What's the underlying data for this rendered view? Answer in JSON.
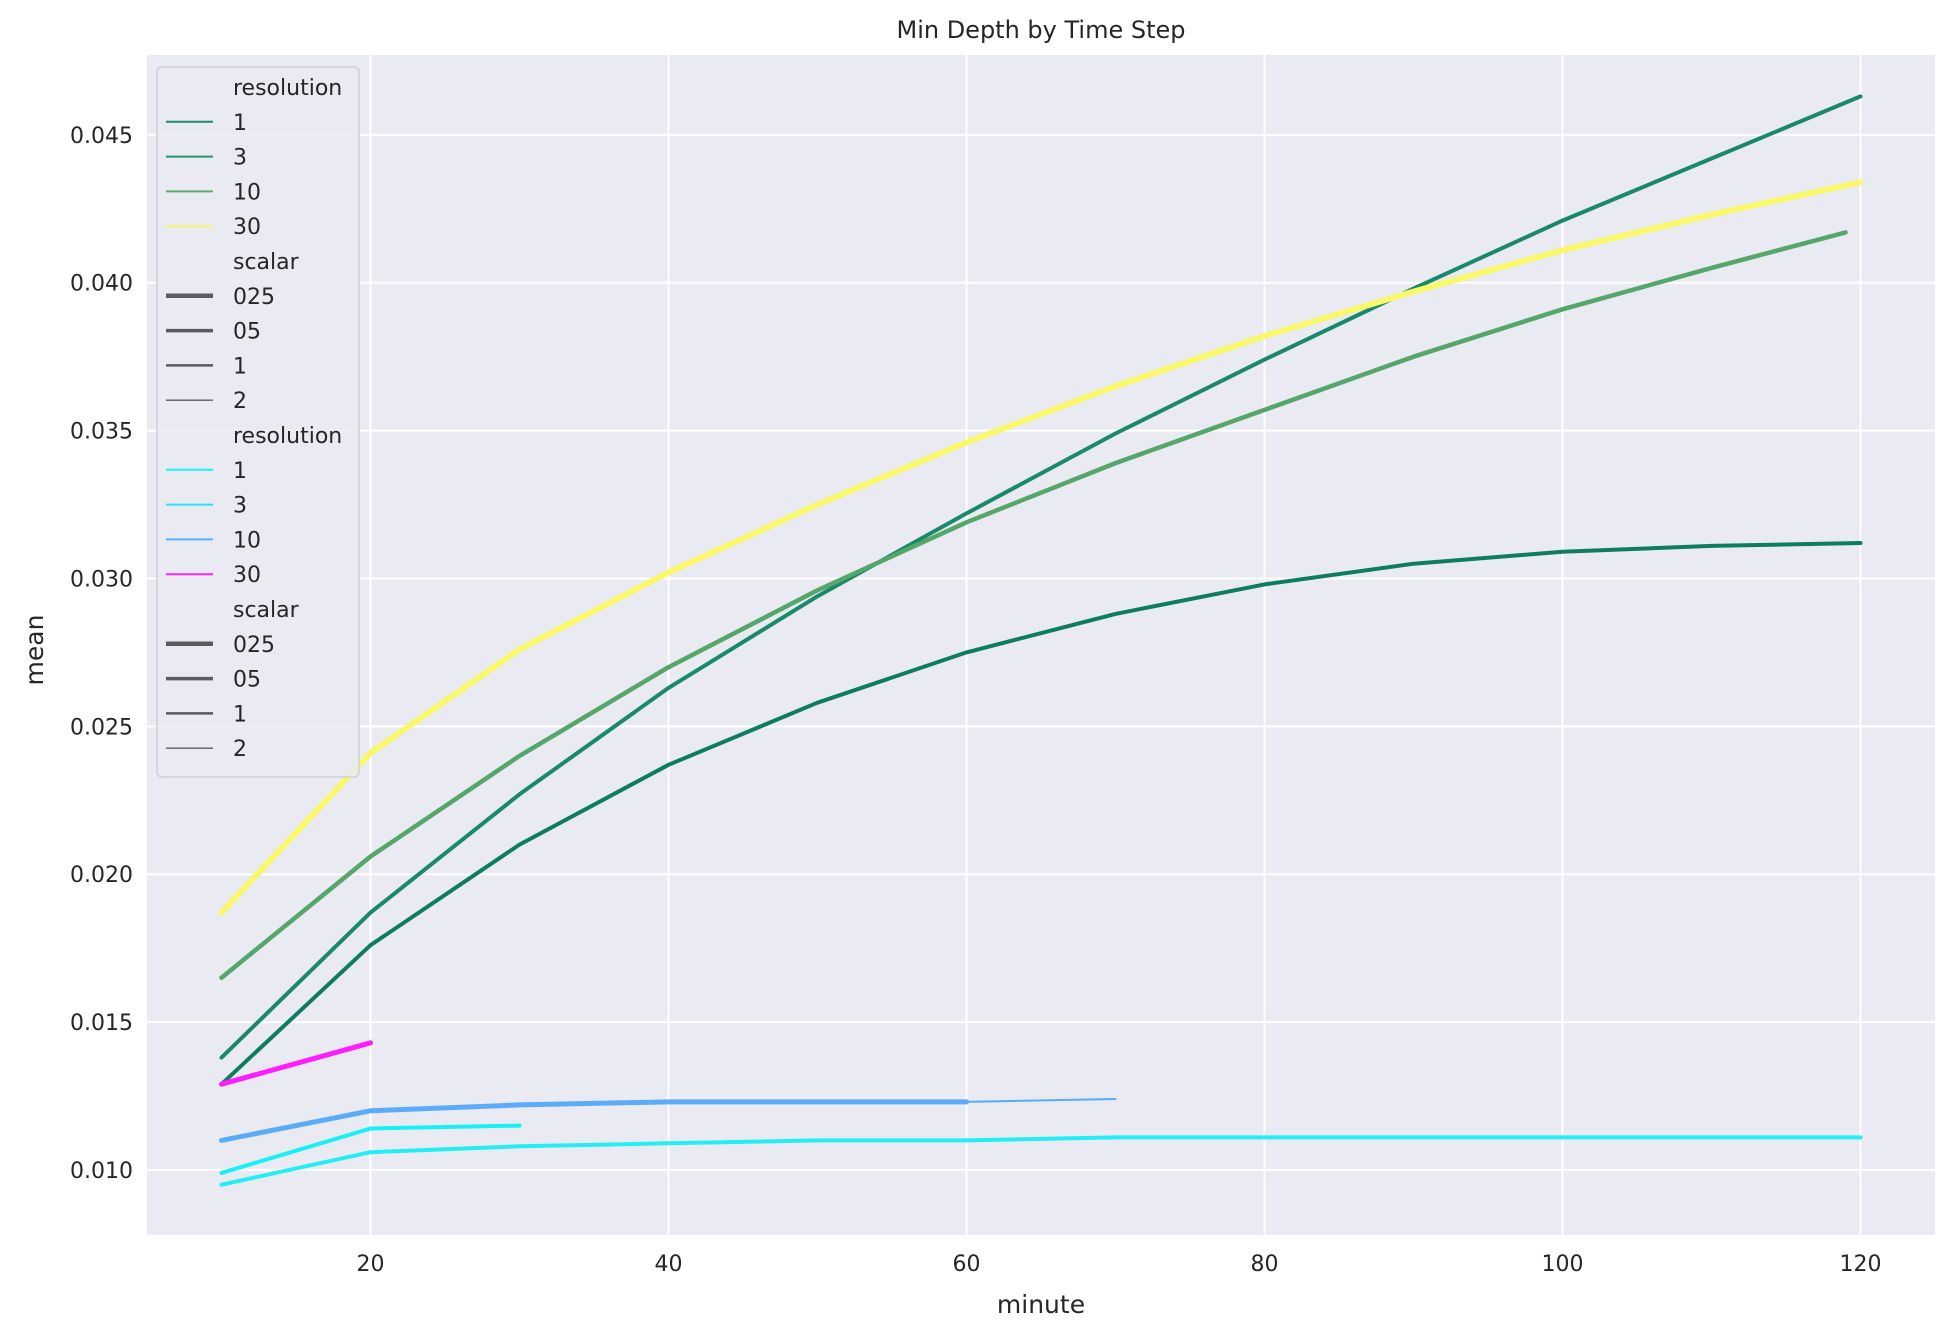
{
  "chart_data": {
    "type": "line",
    "title": "Min Depth by Time Step",
    "xlabel": "minute",
    "ylabel": "mean",
    "xlim": [
      5,
      125
    ],
    "ylim": [
      0.0078,
      0.0477
    ],
    "x_ticks": [
      20,
      40,
      60,
      80,
      100,
      120
    ],
    "y_ticks": [
      0.01,
      0.015,
      0.02,
      0.025,
      0.03,
      0.035,
      0.04,
      0.045
    ],
    "y_tick_labels": [
      "0.010",
      "0.015",
      "0.020",
      "0.025",
      "0.030",
      "0.035",
      "0.040",
      "0.045"
    ],
    "grid": true,
    "legend_position": "top-left",
    "legend": [
      {
        "kind": "header",
        "label": "resolution"
      },
      {
        "kind": "color",
        "label": "1",
        "color": "#1a8a6e",
        "width": 2
      },
      {
        "kind": "color",
        "label": "3",
        "color": "#2a9470",
        "width": 2
      },
      {
        "kind": "color",
        "label": "10",
        "color": "#5aab6e",
        "width": 2
      },
      {
        "kind": "color",
        "label": "30",
        "color": "#f5f56a",
        "width": 2
      },
      {
        "kind": "header",
        "label": "scalar"
      },
      {
        "kind": "width",
        "label": "025",
        "color": "#5b5b5f",
        "width": 4.5
      },
      {
        "kind": "width",
        "label": "05",
        "color": "#5b5b5f",
        "width": 3.5
      },
      {
        "kind": "width",
        "label": "1",
        "color": "#5b5b5f",
        "width": 2.5
      },
      {
        "kind": "width",
        "label": "2",
        "color": "#5b5b5f",
        "width": 1.3
      },
      {
        "kind": "header",
        "label": "resolution"
      },
      {
        "kind": "color",
        "label": "1",
        "color": "#1ef1f1",
        "width": 2
      },
      {
        "kind": "color",
        "label": "3",
        "color": "#2ee0f5",
        "width": 2
      },
      {
        "kind": "color",
        "label": "10",
        "color": "#5aaeff",
        "width": 2
      },
      {
        "kind": "color",
        "label": "30",
        "color": "#ff1fff",
        "width": 2
      },
      {
        "kind": "header",
        "label": "scalar"
      },
      {
        "kind": "width",
        "label": "025",
        "color": "#5b5b5f",
        "width": 4.5
      },
      {
        "kind": "width",
        "label": "05",
        "color": "#5b5b5f",
        "width": 3.5
      },
      {
        "kind": "width",
        "label": "1",
        "color": "#5b5b5f",
        "width": 2.5
      },
      {
        "kind": "width",
        "label": "2",
        "color": "#5b5b5f",
        "width": 1.3
      }
    ],
    "series": [
      {
        "group": "green",
        "resolution": "1",
        "scalar": "05",
        "color": "#0d7d62",
        "width": 4,
        "x": [
          10,
          20,
          30,
          40,
          50,
          60,
          70,
          80,
          90,
          100,
          110,
          120
        ],
        "y": [
          0.0129,
          0.0176,
          0.021,
          0.0237,
          0.0258,
          0.0275,
          0.0288,
          0.0298,
          0.0305,
          0.0309,
          0.0311,
          0.0312
        ]
      },
      {
        "group": "green",
        "resolution": "3",
        "scalar": "05",
        "color": "#198a69",
        "width": 4,
        "x": [
          10,
          20,
          30,
          40,
          50,
          60,
          70,
          80,
          90,
          100,
          110,
          120
        ],
        "y": [
          0.0138,
          0.0187,
          0.0227,
          0.0263,
          0.0294,
          0.0322,
          0.0349,
          0.0374,
          0.0398,
          0.0421,
          0.0442,
          0.0463
        ]
      },
      {
        "group": "green",
        "resolution": "10",
        "scalar": "05",
        "color": "#55a66a",
        "width": 4.5,
        "x": [
          10,
          20,
          30,
          40,
          50,
          60,
          70,
          80,
          90,
          100,
          110,
          119
        ],
        "y": [
          0.0165,
          0.0206,
          0.024,
          0.027,
          0.0296,
          0.0319,
          0.0339,
          0.0357,
          0.0375,
          0.0391,
          0.0405,
          0.0417
        ]
      },
      {
        "group": "green",
        "resolution": "30",
        "scalar": "025",
        "color": "#f8f86a",
        "width": 6,
        "x": [
          10,
          20,
          30,
          40,
          50,
          60,
          70,
          80,
          90,
          100,
          110,
          120
        ],
        "y": [
          0.0187,
          0.0241,
          0.0276,
          0.0302,
          0.0325,
          0.0346,
          0.0365,
          0.0382,
          0.0397,
          0.0411,
          0.0423,
          0.0434
        ]
      },
      {
        "group": "blue",
        "resolution": "1",
        "scalar": "05",
        "color": "#22eef4",
        "width": 4,
        "x": [
          10,
          20,
          30,
          40,
          50,
          60,
          70,
          80,
          90,
          100,
          110,
          120
        ],
        "y": [
          0.0095,
          0.0106,
          0.0108,
          0.0109,
          0.011,
          0.011,
          0.0111,
          0.0111,
          0.0111,
          0.0111,
          0.0111,
          0.0111
        ]
      },
      {
        "group": "blue",
        "resolution": "3",
        "scalar": "05",
        "color": "#18f0f8",
        "width": 4,
        "x": [
          10,
          20,
          30
        ],
        "y": [
          0.0099,
          0.0114,
          0.0115
        ]
      },
      {
        "group": "blue",
        "resolution": "10",
        "scalar": "025",
        "color": "#5aacf8",
        "width": 5,
        "x": [
          10,
          20,
          30,
          40,
          50,
          60
        ],
        "y": [
          0.011,
          0.012,
          0.0122,
          0.0123,
          0.0123,
          0.0123
        ]
      },
      {
        "group": "blue",
        "resolution": "10",
        "scalar": "2",
        "color": "#5aacf8",
        "width": 2,
        "x": [
          60,
          70
        ],
        "y": [
          0.0123,
          0.0124
        ]
      },
      {
        "group": "blue",
        "resolution": "30",
        "scalar": "025",
        "color": "#ff1cff",
        "width": 5,
        "x": [
          10,
          20
        ],
        "y": [
          0.0129,
          0.0143
        ]
      }
    ]
  }
}
